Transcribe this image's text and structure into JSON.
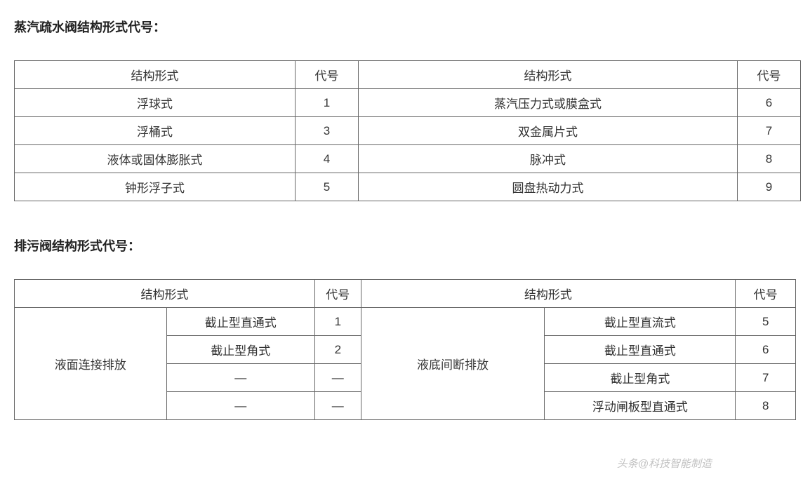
{
  "section1": {
    "title": "蒸汽疏水阀结构形式代号：",
    "table": {
      "headers": {
        "h1": "结构形式",
        "h2": "代号",
        "h3": "结构形式",
        "h4": "代号"
      },
      "rows": [
        {
          "c1": "浮球式",
          "c2": "1",
          "c3": "蒸汽压力式或膜盒式",
          "c4": "6"
        },
        {
          "c1": "浮桶式",
          "c2": "3",
          "c3": "双金属片式",
          "c4": "7"
        },
        {
          "c1": "液体或固体膨胀式",
          "c2": "4",
          "c3": "脉冲式",
          "c4": "8"
        },
        {
          "c1": "钟形浮子式",
          "c2": "5",
          "c3": "圆盘热动力式",
          "c4": "9"
        }
      ]
    }
  },
  "section2": {
    "title": "排污阀结构形式代号：",
    "table": {
      "headers": {
        "h1": "结构形式",
        "h2": "代号",
        "h3": "结构形式",
        "h4": "代号"
      },
      "leftGroupLabel": "液面连接排放",
      "rightGroupLabel": "液底间断排放",
      "leftRows": [
        {
          "c1": "截止型直通式",
          "c2": "1"
        },
        {
          "c1": "截止型角式",
          "c2": "2"
        },
        {
          "c1": "—",
          "c2": "—"
        },
        {
          "c1": "—",
          "c2": "—"
        }
      ],
      "rightRows": [
        {
          "c1": "截止型直流式",
          "c2": "5"
        },
        {
          "c1": "截止型直通式",
          "c2": "6"
        },
        {
          "c1": "截止型角式",
          "c2": "7"
        },
        {
          "c1": "浮动闸板型直通式",
          "c2": "8"
        }
      ]
    }
  },
  "watermark": "头条@科技智能制造",
  "styling": {
    "background_color": "#ffffff",
    "text_color": "#333333",
    "title_color": "#222222",
    "border_color": "#666666",
    "title_fontsize": 18,
    "cell_fontsize": 17,
    "font_family": "Microsoft YaHei"
  }
}
